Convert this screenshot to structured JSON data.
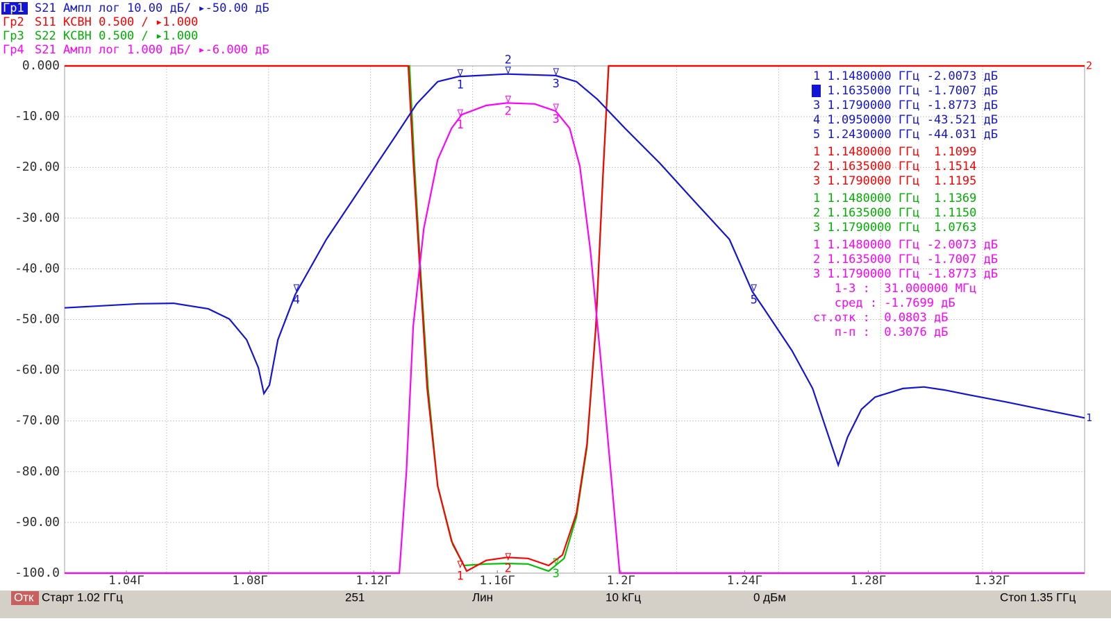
{
  "chart_data": {
    "type": "line",
    "xlim": [
      1.02,
      1.35
    ],
    "ylim": [
      -100,
      0
    ],
    "yticks": [
      {
        "value": 0,
        "label": "0.000"
      },
      {
        "value": -10,
        "label": "-10.00"
      },
      {
        "value": -20,
        "label": "-20.00"
      },
      {
        "value": -30,
        "label": "-30.00"
      },
      {
        "value": -40,
        "label": "-40.00"
      },
      {
        "value": -50,
        "label": "-50.00"
      },
      {
        "value": -60,
        "label": "-60.00"
      },
      {
        "value": -70,
        "label": "-70.00"
      },
      {
        "value": -80,
        "label": "-80.00"
      },
      {
        "value": -90,
        "label": "-90.00"
      },
      {
        "value": -100,
        "label": "-100.0"
      }
    ],
    "xticks": [
      {
        "value": 1.04,
        "label": "1.04Г"
      },
      {
        "value": 1.08,
        "label": "1.08Г"
      },
      {
        "value": 1.12,
        "label": "1.12Г"
      },
      {
        "value": 1.16,
        "label": "1.16Г"
      },
      {
        "value": 1.2,
        "label": "1.2Г"
      },
      {
        "value": 1.24,
        "label": "1.24Г"
      },
      {
        "value": 1.28,
        "label": "1.28Г"
      },
      {
        "value": 1.32,
        "label": "1.32Г"
      }
    ],
    "xgrid": [
      1.053,
      1.086,
      1.119,
      1.152,
      1.185,
      1.218,
      1.251,
      1.284,
      1.317
    ],
    "grid": true,
    "series": [
      {
        "color": "#00c000",
        "x": [
          1.02,
          1.1316,
          1.1331,
          1.1353,
          1.1376,
          1.1407,
          1.1456,
          1.1492,
          1.1564,
          1.1631,
          1.1699,
          1.1766,
          1.1816,
          1.1856,
          1.189,
          1.1919,
          1.1942,
          1.196,
          1.35
        ],
        "values": [
          0,
          0,
          -18.5,
          -41.7,
          -63.6,
          -82.8,
          -94.4,
          -98.5,
          -98.2,
          -98.1,
          -98.2,
          -99.6,
          -97.1,
          -88.9,
          -75.2,
          -51.3,
          -21.2,
          0,
          0
        ]
      },
      {
        "color": "#ff0000",
        "x": [
          1.02,
          1.1312,
          1.1328,
          1.1351,
          1.1373,
          1.1407,
          1.1452,
          1.1501,
          1.1564,
          1.1631,
          1.1699,
          1.1766,
          1.1811,
          1.1856,
          1.189,
          1.1919,
          1.1942,
          1.196,
          1.35
        ],
        "values": [
          0,
          0,
          -18.5,
          -41.7,
          -63.6,
          -82.8,
          -93.7,
          -99.6,
          -97.5,
          -96.9,
          -97.1,
          -98.5,
          -96.4,
          -88.2,
          -74.6,
          -51.3,
          -21.2,
          0,
          0
        ]
      },
      {
        "color": "#ff00ff",
        "x": [
          1.02,
          1.1283,
          1.1306,
          1.1328,
          1.1362,
          1.1407,
          1.1452,
          1.1485,
          1.1564,
          1.1631,
          1.1721,
          1.1789,
          1.1834,
          1.1867,
          1.1901,
          1.1935,
          1.1969,
          1.1996,
          1.35
        ],
        "values": [
          -100,
          -100,
          -80,
          -51.3,
          -32.1,
          -18.5,
          -12.3,
          -9.6,
          -7.8,
          -7.3,
          -7.5,
          -8.9,
          -12.3,
          -19.8,
          -36.3,
          -58.1,
          -81.4,
          -100,
          -100
        ]
      },
      {
        "color": "#1414d8",
        "x": [
          1.02,
          1.044,
          1.0553,
          1.0665,
          1.0733,
          1.0789,
          1.0827,
          1.0845,
          1.0863,
          1.089,
          1.0946,
          1.1047,
          1.116,
          1.1272,
          1.1339,
          1.1407,
          1.1474,
          1.1631,
          1.1789,
          1.1856,
          1.1924,
          1.2013,
          1.2126,
          1.2238,
          1.2351,
          1.2425,
          1.2463,
          1.2553,
          1.262,
          1.2665,
          1.2703,
          1.2733,
          1.2778,
          1.2822,
          1.2912,
          1.298,
          1.3047,
          1.3137,
          1.325,
          1.3362,
          1.35
        ],
        "values": [
          -47.7,
          -46.9,
          -46.8,
          -47.9,
          -49.9,
          -54,
          -59.5,
          -64.6,
          -62.9,
          -54,
          -45.1,
          -34.2,
          -23.9,
          -13.7,
          -7.5,
          -3.1,
          -2.1,
          -1.6,
          -1.9,
          -3.1,
          -6.6,
          -12.3,
          -19.2,
          -26.7,
          -34.2,
          -44.5,
          -47.9,
          -56.1,
          -63.6,
          -71.8,
          -78.7,
          -73.2,
          -67.7,
          -65.3,
          -63.6,
          -63.3,
          -63.9,
          -65,
          -66.3,
          -67.7,
          -69.4
        ]
      }
    ],
    "markers": [
      {
        "label": "1",
        "series": 3,
        "x": 1.148,
        "y": -2.1
      },
      {
        "label": "2",
        "series": 3,
        "x": 1.1635,
        "y": -1.6
      },
      {
        "label": "3",
        "series": 3,
        "x": 1.179,
        "y": -1.9
      },
      {
        "label": "4",
        "series": 3,
        "x": 1.095,
        "y": -44.5
      },
      {
        "label": "5",
        "series": 3,
        "x": 1.243,
        "y": -44.5
      },
      {
        "label": "1",
        "series": 2,
        "x": 1.148,
        "y": -10
      },
      {
        "label": "2",
        "series": 2,
        "x": 1.1635,
        "y": -7.3
      },
      {
        "label": "3",
        "series": 2,
        "x": 1.179,
        "y": -8.9
      },
      {
        "label": "1",
        "series": 1,
        "x": 1.148,
        "y": -99
      },
      {
        "label": "2",
        "series": 1,
        "x": 1.1635,
        "y": -97.5
      },
      {
        "label": "3",
        "series": 0,
        "x": 1.179,
        "y": -98.5
      }
    ],
    "ref_labels": [
      {
        "text": "2",
        "color": "#ff0000",
        "y": 0
      },
      {
        "text": "1",
        "color": "#1414d8",
        "y": -69.4
      }
    ]
  },
  "header": [
    {
      "label": "Гр1",
      "text": "S21 Ампл лог 10.00 дБ/ ▸-50.00 дБ",
      "color": "#1414d8"
    },
    {
      "label": "Гр2",
      "text": "S11 КСВН 0.500 / ▸1.000",
      "color": "#ff0000"
    },
    {
      "label": "Гр3",
      "text": "S22 КСВН 0.500 / ▸1.000",
      "color": "#00b000"
    },
    {
      "label": "Гр4",
      "text": "S21 Ампл лог 1.000 дБ/ ▸-6.000 дБ",
      "color": "#ff00ff"
    }
  ],
  "marker_table": [
    {
      "color": "#1414d8",
      "rows": [
        "1 1.1480000 ГГц -2.0073 дБ",
        "2 1.1635000 ГГц -1.7007 дБ",
        "3 1.1790000 ГГц -1.8773 дБ",
        "4 1.0950000 ГГц -43.521 дБ",
        "5 1.2430000 ГГц -44.031 дБ"
      ]
    },
    {
      "color": "#ff0000",
      "rows": [
        "1 1.1480000 ГГц  1.1099",
        "2 1.1635000 ГГц  1.1514",
        "3 1.1790000 ГГц  1.1195"
      ]
    },
    {
      "color": "#00b000",
      "rows": [
        "1 1.1480000 ГГц  1.1369",
        "2 1.1635000 ГГц  1.1150",
        "3 1.1790000 ГГц  1.0763"
      ]
    },
    {
      "color": "#ff00ff",
      "rows": [
        "1 1.1480000 ГГц -2.0073 дБ",
        "2 1.1635000 ГГц -1.7007 дБ",
        "3 1.1790000 ГГц -1.8773 дБ",
        "   1-3 :  31.000000 МГц",
        "   сред : -1.7699 дБ",
        "ст.отк :  0.0803 дБ",
        "   п-п :  0.3076 дБ"
      ]
    }
  ],
  "status_bar": [
    "Отк",
    "Старт 1.02 ГГц",
    "251",
    "Лин",
    "10 kГц",
    "0 дБм",
    "Стоп 1.35 ГГц"
  ]
}
